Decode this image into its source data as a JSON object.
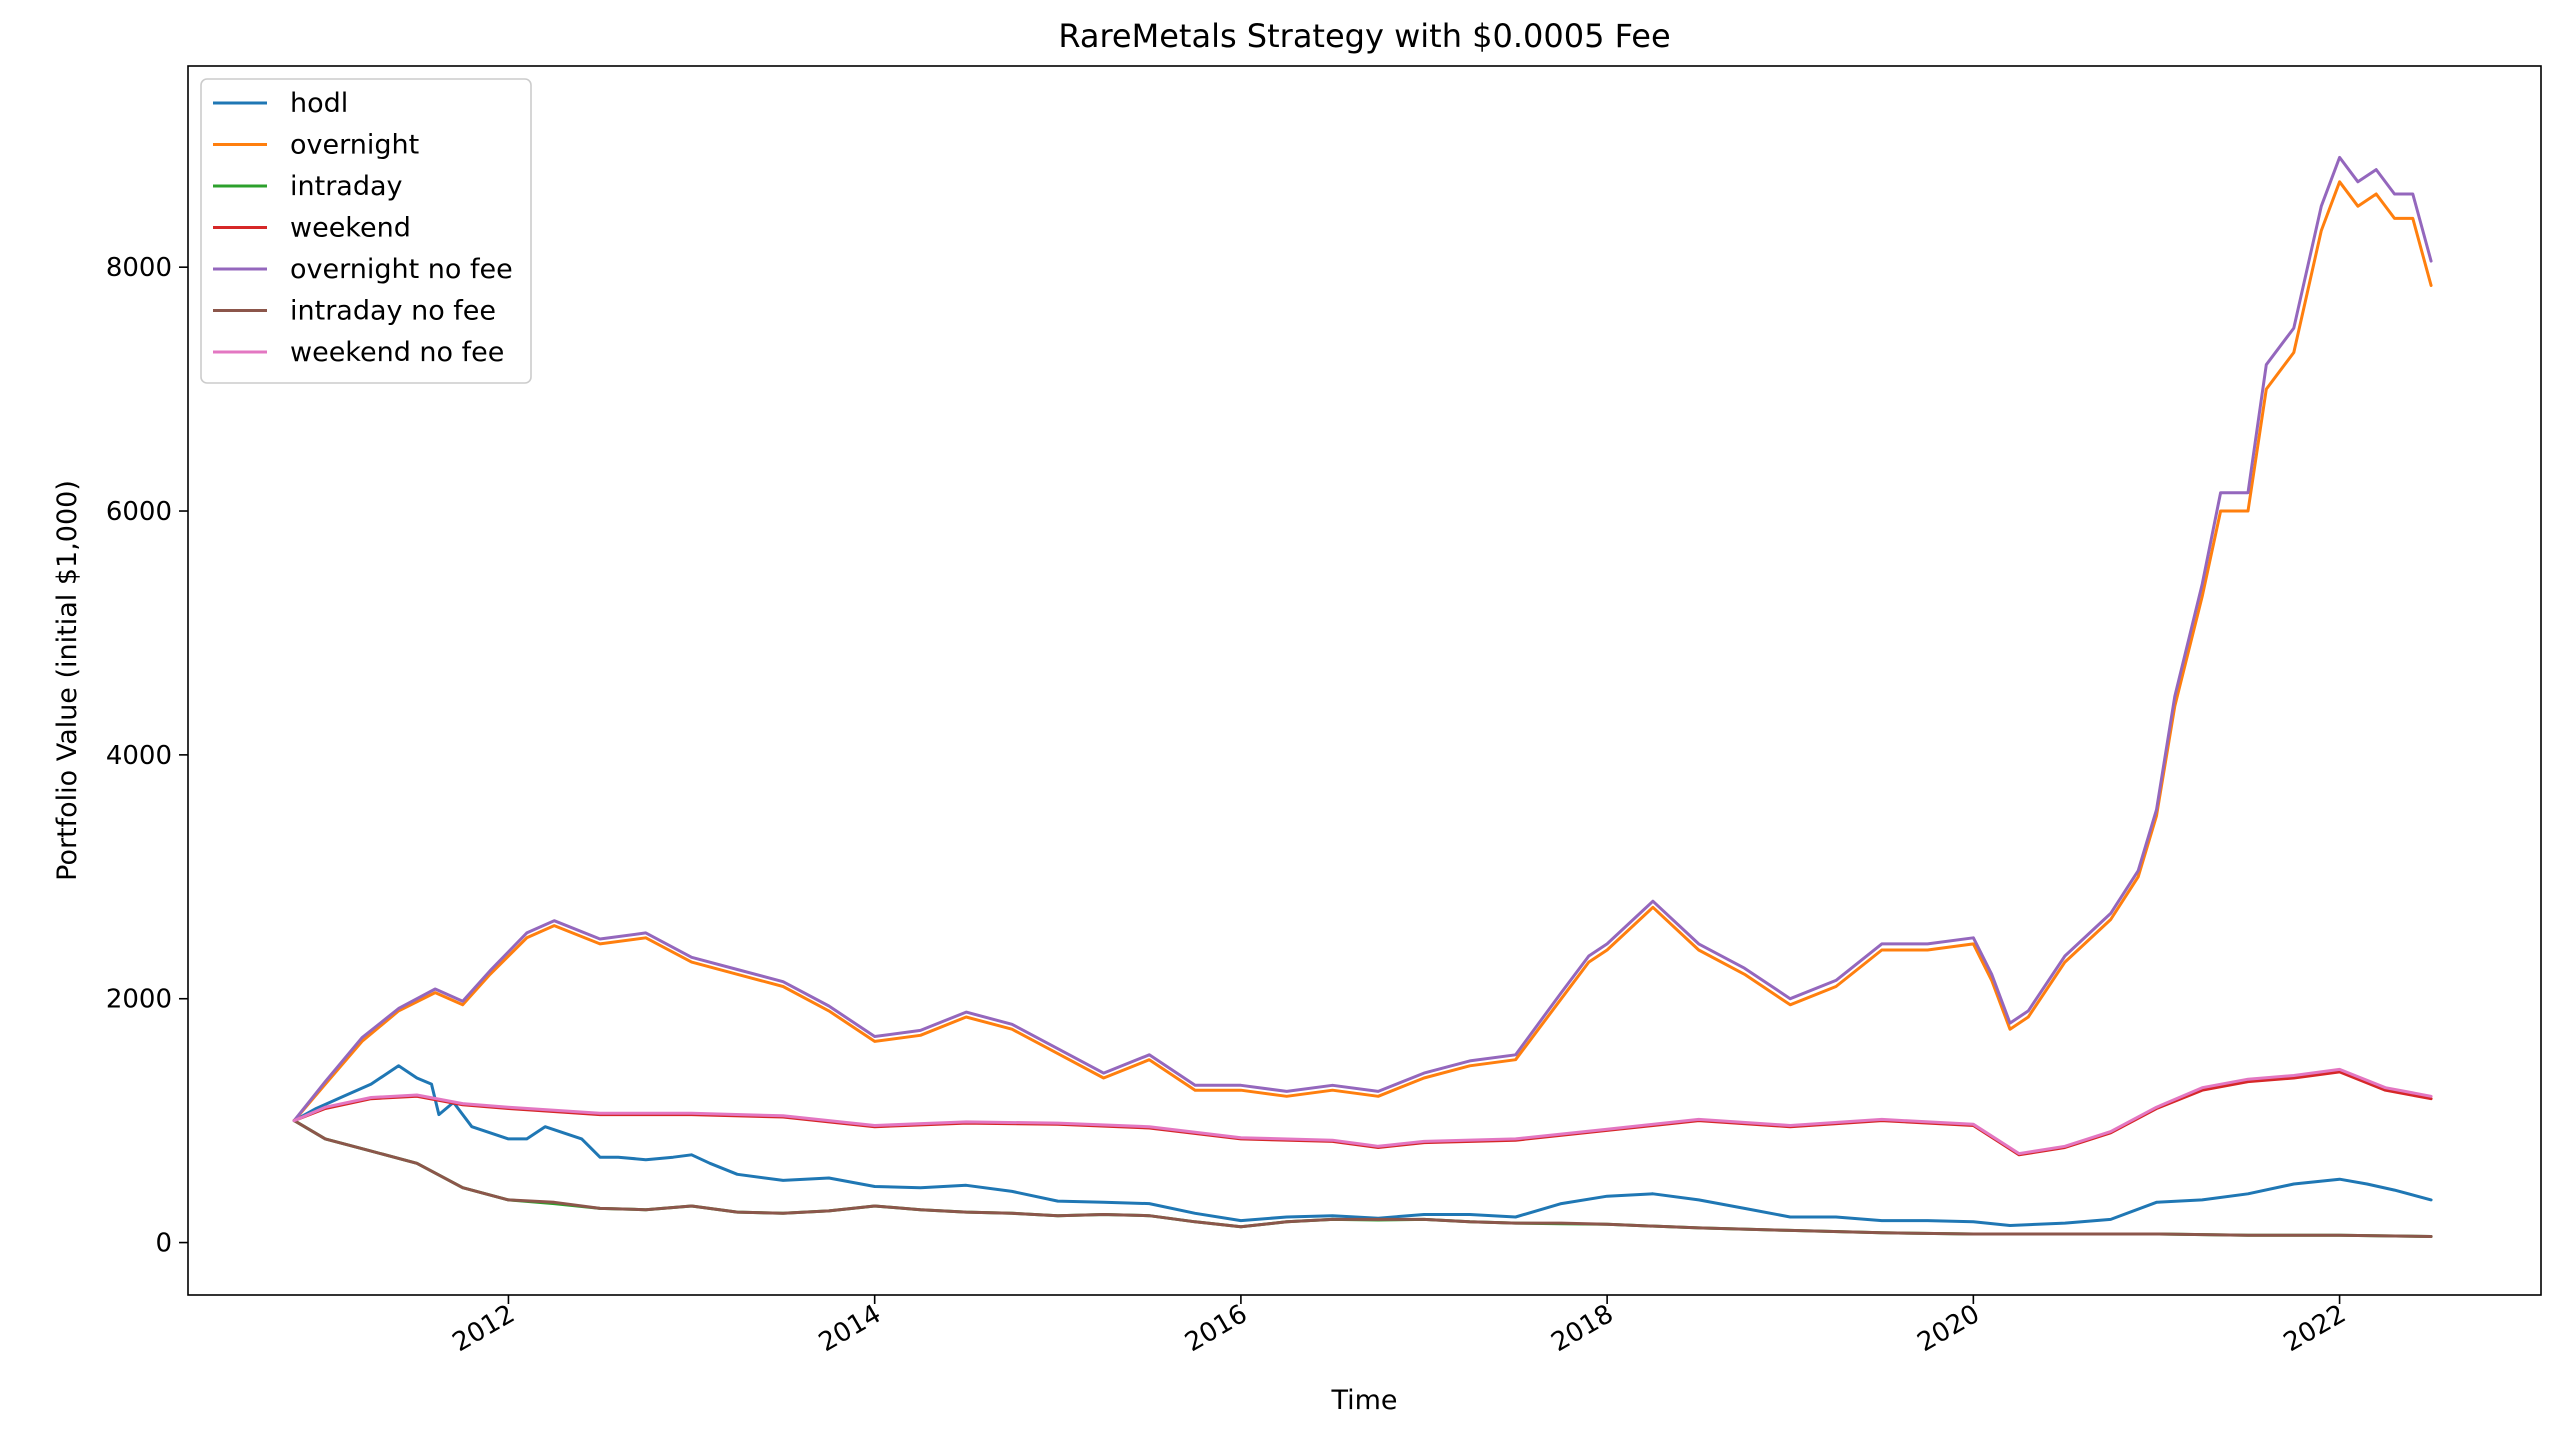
{
  "chart_data": {
    "type": "line",
    "title": "RareMetals Strategy with $0.0005 Fee",
    "xlabel": "Time",
    "ylabel": "Portfolio Value (initial $1,000)",
    "xlim": [
      2010.25,
      2023.1
    ],
    "ylim": [
      -430,
      9650
    ],
    "xticks": [
      2012,
      2014,
      2016,
      2018,
      2020,
      2022
    ],
    "xtick_labels": [
      "2012",
      "2014",
      "2016",
      "2018",
      "2020",
      "2022"
    ],
    "yticks": [
      0,
      2000,
      4000,
      6000,
      8000
    ],
    "ytick_labels": [
      "0",
      "2000",
      "4000",
      "6000",
      "8000"
    ],
    "grid": false,
    "legend_position": "upper-left",
    "series": [
      {
        "name": "hodl",
        "color": "#1f77b4",
        "x": [
          2010.83,
          2010.95,
          2011.1,
          2011.25,
          2011.4,
          2011.5,
          2011.58,
          2011.62,
          2011.7,
          2011.8,
          2011.9,
          2012.0,
          2012.1,
          2012.2,
          2012.3,
          2012.4,
          2012.5,
          2012.6,
          2012.75,
          2012.9,
          2013.0,
          2013.1,
          2013.25,
          2013.5,
          2013.75,
          2014.0,
          2014.25,
          2014.5,
          2014.75,
          2015.0,
          2015.25,
          2015.5,
          2015.75,
          2016.0,
          2016.25,
          2016.5,
          2016.75,
          2017.0,
          2017.25,
          2017.5,
          2017.75,
          2018.0,
          2018.25,
          2018.5,
          2018.75,
          2019.0,
          2019.25,
          2019.5,
          2019.75,
          2020.0,
          2020.2,
          2020.5,
          2020.75,
          2021.0,
          2021.25,
          2021.5,
          2021.75,
          2022.0,
          2022.15,
          2022.3,
          2022.5
        ],
        "y": [
          1000,
          1100,
          1200,
          1300,
          1450,
          1350,
          1300,
          1050,
          1150,
          950,
          900,
          850,
          850,
          950,
          900,
          850,
          700,
          700,
          680,
          700,
          720,
          650,
          560,
          510,
          530,
          460,
          450,
          470,
          420,
          340,
          330,
          320,
          240,
          180,
          210,
          220,
          200,
          230,
          230,
          210,
          320,
          380,
          400,
          350,
          280,
          210,
          210,
          180,
          180,
          170,
          140,
          160,
          190,
          330,
          350,
          400,
          480,
          520,
          480,
          430,
          350
        ]
      },
      {
        "name": "overnight",
        "color": "#ff7f0e",
        "x": [
          2010.83,
          2011.0,
          2011.2,
          2011.4,
          2011.6,
          2011.75,
          2011.9,
          2012.1,
          2012.25,
          2012.5,
          2012.75,
          2013.0,
          2013.25,
          2013.5,
          2013.75,
          2014.0,
          2014.25,
          2014.5,
          2014.75,
          2015.0,
          2015.25,
          2015.5,
          2015.75,
          2016.0,
          2016.25,
          2016.5,
          2016.75,
          2017.0,
          2017.25,
          2017.5,
          2017.75,
          2017.9,
          2018.0,
          2018.25,
          2018.5,
          2018.75,
          2019.0,
          2019.25,
          2019.5,
          2019.75,
          2020.0,
          2020.1,
          2020.2,
          2020.3,
          2020.5,
          2020.75,
          2020.9,
          2021.0,
          2021.1,
          2021.25,
          2021.35,
          2021.5,
          2021.6,
          2021.75,
          2021.9,
          2022.0,
          2022.1,
          2022.2,
          2022.3,
          2022.4,
          2022.5
        ],
        "y": [
          1000,
          1300,
          1650,
          1900,
          2050,
          1950,
          2200,
          2500,
          2600,
          2450,
          2500,
          2300,
          2200,
          2100,
          1900,
          1650,
          1700,
          1850,
          1750,
          1550,
          1350,
          1500,
          1250,
          1250,
          1200,
          1250,
          1200,
          1350,
          1450,
          1500,
          2000,
          2300,
          2400,
          2750,
          2400,
          2200,
          1950,
          2100,
          2400,
          2400,
          2450,
          2150,
          1750,
          1850,
          2300,
          2650,
          3000,
          3500,
          4400,
          5300,
          6000,
          6000,
          7000,
          7300,
          8300,
          8700,
          8500,
          8600,
          8400,
          8400,
          7850
        ]
      },
      {
        "name": "intraday",
        "color": "#2ca02c",
        "x": [
          2010.83,
          2011.0,
          2011.25,
          2011.5,
          2011.75,
          2012.0,
          2012.25,
          2012.5,
          2012.75,
          2013.0,
          2013.25,
          2013.5,
          2013.75,
          2014.0,
          2014.25,
          2014.5,
          2014.75,
          2015.0,
          2015.25,
          2015.5,
          2015.75,
          2016.0,
          2016.25,
          2016.5,
          2016.75,
          2017.0,
          2017.25,
          2017.5,
          2017.75,
          2018.0,
          2018.5,
          2019.0,
          2019.5,
          2020.0,
          2020.5,
          2021.0,
          2021.5,
          2022.0,
          2022.5
        ],
        "y": [
          1000,
          850,
          750,
          650,
          450,
          350,
          320,
          280,
          270,
          300,
          250,
          240,
          260,
          300,
          270,
          250,
          240,
          220,
          230,
          220,
          170,
          130,
          170,
          190,
          185,
          190,
          170,
          160,
          155,
          150,
          120,
          100,
          80,
          70,
          70,
          70,
          60,
          60,
          50
        ]
      },
      {
        "name": "weekend",
        "color": "#d62728",
        "x": [
          2010.83,
          2011.0,
          2011.25,
          2011.5,
          2011.75,
          2012.0,
          2012.5,
          2013.0,
          2013.5,
          2014.0,
          2014.5,
          2015.0,
          2015.5,
          2016.0,
          2016.5,
          2016.75,
          2017.0,
          2017.5,
          2018.0,
          2018.5,
          2019.0,
          2019.5,
          2020.0,
          2020.25,
          2020.5,
          2020.75,
          2021.0,
          2021.25,
          2021.5,
          2021.75,
          2022.0,
          2022.25,
          2022.5
        ],
        "y": [
          1000,
          1100,
          1180,
          1200,
          1130,
          1100,
          1050,
          1050,
          1030,
          950,
          980,
          970,
          940,
          850,
          830,
          780,
          820,
          840,
          920,
          1000,
          950,
          1000,
          960,
          720,
          780,
          900,
          1100,
          1250,
          1320,
          1350,
          1400,
          1250,
          1180
        ]
      },
      {
        "name": "overnight no fee",
        "color": "#9467bd",
        "x": [
          2010.83,
          2011.0,
          2011.2,
          2011.4,
          2011.6,
          2011.75,
          2011.9,
          2012.1,
          2012.25,
          2012.5,
          2012.75,
          2013.0,
          2013.25,
          2013.5,
          2013.75,
          2014.0,
          2014.25,
          2014.5,
          2014.75,
          2015.0,
          2015.25,
          2015.5,
          2015.75,
          2016.0,
          2016.25,
          2016.5,
          2016.75,
          2017.0,
          2017.25,
          2017.5,
          2017.75,
          2017.9,
          2018.0,
          2018.25,
          2018.5,
          2018.75,
          2019.0,
          2019.25,
          2019.5,
          2019.75,
          2020.0,
          2020.1,
          2020.2,
          2020.3,
          2020.5,
          2020.75,
          2020.9,
          2021.0,
          2021.1,
          2021.25,
          2021.35,
          2021.5,
          2021.6,
          2021.75,
          2021.9,
          2022.0,
          2022.1,
          2022.2,
          2022.3,
          2022.4,
          2022.5
        ],
        "y": [
          1000,
          1320,
          1680,
          1920,
          2080,
          1980,
          2230,
          2540,
          2640,
          2490,
          2540,
          2340,
          2240,
          2140,
          1940,
          1690,
          1740,
          1890,
          1790,
          1590,
          1390,
          1540,
          1290,
          1290,
          1240,
          1290,
          1240,
          1390,
          1490,
          1540,
          2050,
          2350,
          2450,
          2800,
          2450,
          2250,
          2000,
          2150,
          2450,
          2450,
          2500,
          2200,
          1800,
          1900,
          2350,
          2700,
          3050,
          3550,
          4480,
          5400,
          6150,
          6150,
          7200,
          7500,
          8500,
          8900,
          8700,
          8800,
          8600,
          8600,
          8050
        ]
      },
      {
        "name": "intraday no fee",
        "color": "#8c564b",
        "x": [
          2010.83,
          2011.0,
          2011.25,
          2011.5,
          2011.75,
          2012.0,
          2012.25,
          2012.5,
          2012.75,
          2013.0,
          2013.25,
          2013.5,
          2013.75,
          2014.0,
          2014.25,
          2014.5,
          2014.75,
          2015.0,
          2015.25,
          2015.5,
          2015.75,
          2016.0,
          2016.25,
          2016.5,
          2016.75,
          2017.0,
          2017.25,
          2017.5,
          2017.75,
          2018.0,
          2018.5,
          2019.0,
          2019.5,
          2020.0,
          2020.5,
          2021.0,
          2021.5,
          2022.0,
          2022.5
        ],
        "y": [
          1000,
          850,
          750,
          650,
          450,
          350,
          330,
          280,
          270,
          300,
          250,
          240,
          260,
          300,
          270,
          250,
          240,
          220,
          230,
          220,
          170,
          130,
          170,
          190,
          190,
          190,
          170,
          160,
          160,
          150,
          120,
          100,
          80,
          70,
          70,
          70,
          60,
          60,
          50
        ]
      },
      {
        "name": "weekend no fee",
        "color": "#e377c2",
        "x": [
          2010.83,
          2011.0,
          2011.25,
          2011.5,
          2011.75,
          2012.0,
          2012.5,
          2013.0,
          2013.5,
          2014.0,
          2014.5,
          2015.0,
          2015.5,
          2016.0,
          2016.5,
          2016.75,
          2017.0,
          2017.5,
          2018.0,
          2018.5,
          2019.0,
          2019.5,
          2020.0,
          2020.25,
          2020.5,
          2020.75,
          2021.0,
          2021.25,
          2021.5,
          2021.75,
          2022.0,
          2022.25,
          2022.5
        ],
        "y": [
          1000,
          1110,
          1190,
          1210,
          1140,
          1110,
          1060,
          1060,
          1040,
          960,
          990,
          980,
          950,
          860,
          840,
          790,
          830,
          850,
          930,
          1010,
          960,
          1010,
          970,
          730,
          790,
          910,
          1110,
          1270,
          1340,
          1370,
          1420,
          1270,
          1200
        ]
      }
    ]
  }
}
